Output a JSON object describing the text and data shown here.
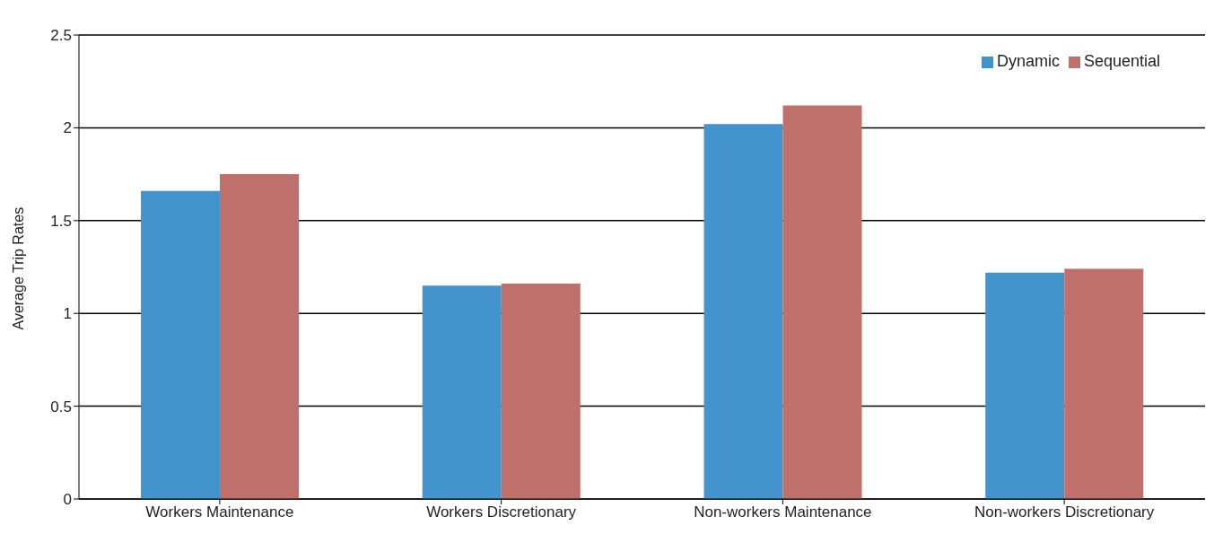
{
  "chart_data": {
    "type": "bar",
    "ylabel": "Average Trip Rates",
    "categories": [
      "Workers Maintenance",
      "Workers Discretionary",
      "Non-workers Maintenance",
      "Non-workers Discretionary"
    ],
    "series": [
      {
        "name": "Dynamic",
        "color": "#4393cc",
        "values": [
          1.66,
          1.15,
          2.02,
          1.22
        ]
      },
      {
        "name": "Sequential",
        "color": "#c0706a",
        "values": [
          1.75,
          1.16,
          2.12,
          1.24
        ]
      }
    ],
    "ylim": [
      0,
      2.5
    ],
    "yticks": [
      0,
      0.5,
      1,
      1.5,
      2,
      2.5
    ],
    "grid": "y",
    "legend": "top right"
  }
}
